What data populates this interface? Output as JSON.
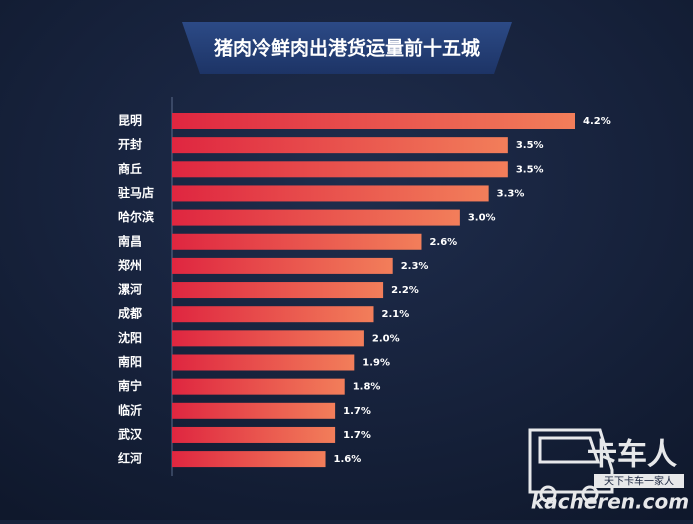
{
  "chart_data": {
    "type": "barh",
    "title": "猪肉冷鲜肉出港货运量前十五城",
    "categories": [
      "昆明",
      "开封",
      "商丘",
      "驻马店",
      "哈尔滨",
      "南昌",
      "郑州",
      "漯河",
      "成都",
      "沈阳",
      "南阳",
      "南宁",
      "临沂",
      "武汉",
      "红河"
    ],
    "values": [
      4.2,
      3.5,
      3.5,
      3.3,
      3.0,
      2.6,
      2.3,
      2.2,
      2.1,
      2.0,
      1.9,
      1.8,
      1.7,
      1.7,
      1.6
    ],
    "value_labels": [
      "4.2%",
      "3.5%",
      "3.5%",
      "3.3%",
      "3.0%",
      "2.6%",
      "2.3%",
      "2.2%",
      "2.1%",
      "2.0%",
      "1.9%",
      "1.8%",
      "1.7%",
      "1.7%",
      "1.6%"
    ],
    "color": [
      "#df2640",
      "#f27e5a"
    ]
  },
  "watermark": {
    "brand": "卡车人",
    "slogan": "天下卡车一家人",
    "site": "kacheren.com"
  }
}
